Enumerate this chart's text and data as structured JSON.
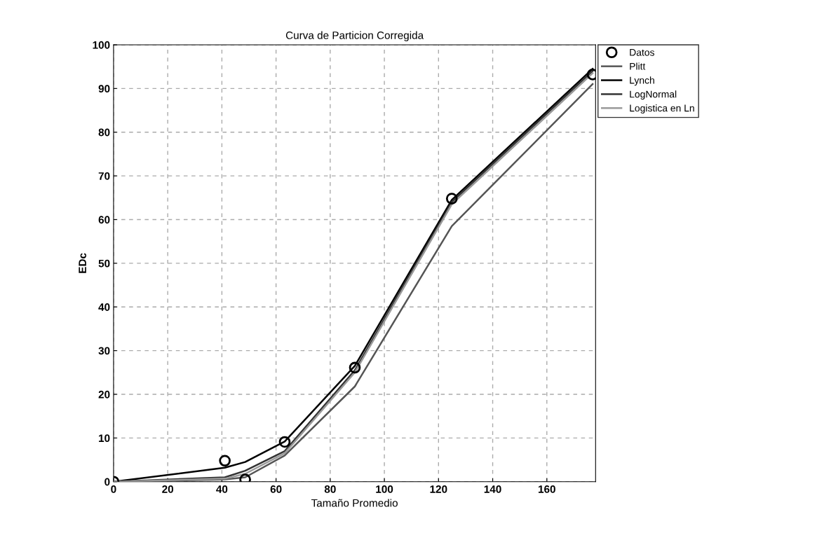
{
  "chart_data": {
    "type": "line",
    "title": "Curva de Particion Corregida",
    "xlabel": "Tamaño Promedio",
    "ylabel": "EDc",
    "x": [
      0,
      41.1,
      48.6,
      63.2,
      89.1,
      124.9,
      176.9
    ],
    "series": [
      {
        "name": "Datos",
        "type": "scatter",
        "marker": "circle",
        "color": "#000000",
        "values": [
          0,
          4.8,
          0.5,
          9.1,
          26.1,
          64.8,
          93.2
        ]
      },
      {
        "name": "Plitt",
        "color": "#555555",
        "values": [
          0,
          0.5,
          1.0,
          6.0,
          21.8,
          58.5,
          91.0
        ]
      },
      {
        "name": "Lynch",
        "color": "#000000",
        "values": [
          0,
          3.2,
          4.5,
          9.2,
          26.5,
          64.5,
          94.5
        ]
      },
      {
        "name": "LogNormal",
        "color": "#333333",
        "values": [
          0,
          1.0,
          2.5,
          7.0,
          25.5,
          64.0,
          94.0
        ]
      },
      {
        "name": "Logistica en Ln",
        "color": "#999999",
        "values": [
          0,
          0.7,
          1.8,
          6.5,
          25.0,
          63.5,
          93.5
        ]
      }
    ],
    "xlim": [
      0,
      178
    ],
    "ylim": [
      0,
      100
    ],
    "xticks": [
      0,
      20,
      40,
      60,
      80,
      100,
      120,
      140,
      160
    ],
    "yticks": [
      0,
      10,
      20,
      30,
      40,
      50,
      60,
      70,
      80,
      90,
      100
    ],
    "grid": true,
    "legend": "top right",
    "line_style": "solid"
  }
}
